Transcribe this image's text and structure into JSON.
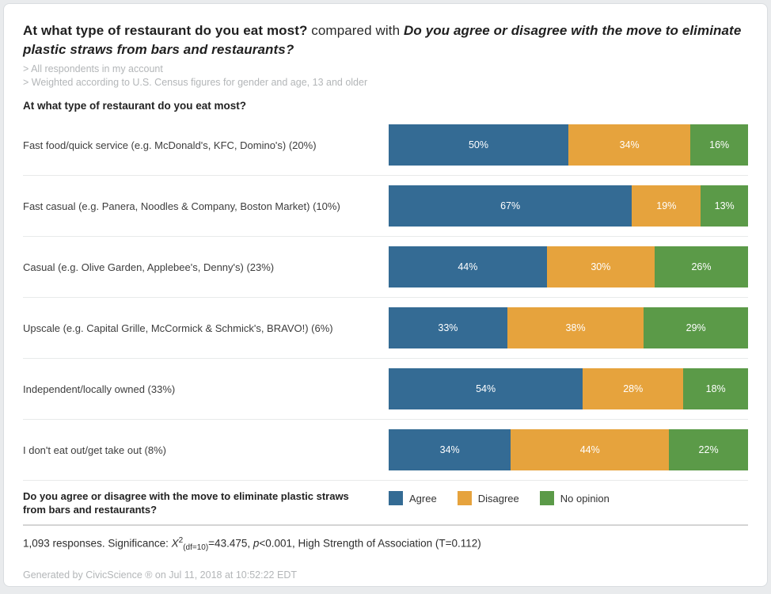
{
  "header": {
    "title_bold": "At what type of restaurant do you eat most?",
    "title_regular": " compared with ",
    "title_italic": "Do you agree or disagree with the move to eliminate plastic straws from bars and restaurants?",
    "filters": [
      "> All respondents in my account",
      "> Weighted according to U.S. Census figures for gender and age, 13 and older"
    ]
  },
  "section_heading": "At what type of restaurant do you eat most?",
  "chart_data": {
    "type": "bar",
    "orientation": "horizontal",
    "stacked": true,
    "unit": "%",
    "value_label_suffix": "%",
    "legend_position": "bottom-right",
    "grid": false,
    "categories": [
      "Fast food/quick service (e.g. McDonald's, KFC, Domino's) (20%)",
      "Fast casual (e.g. Panera, Noodles & Company, Boston Market) (10%)",
      "Casual (e.g. Olive Garden, Applebee's, Denny's) (23%)",
      "Upscale (e.g. Capital Grille, McCormick & Schmick's, BRAVO!) (6%)",
      "Independent/locally owned (33%)",
      "I don't eat out/get take out (8%)"
    ],
    "series": [
      {
        "name": "Agree",
        "color": "#346b94",
        "values": [
          50,
          67,
          44,
          33,
          54,
          34
        ]
      },
      {
        "name": "Disagree",
        "color": "#e6a33d",
        "values": [
          34,
          19,
          30,
          38,
          28,
          44
        ]
      },
      {
        "name": "No opinion",
        "color": "#5b9a48",
        "values": [
          16,
          13,
          26,
          29,
          18,
          22
        ]
      }
    ]
  },
  "legend": {
    "question": "Do you agree or disagree with the move to eliminate plastic straws from bars and restaurants?"
  },
  "significance": {
    "prefix": "1,093 responses. Significance: ",
    "chi": "X",
    "sup": "2",
    "sub": "(df=10)",
    "equals": "=43.475, ",
    "p": "p",
    "tail": "<0.001, High Strength of Association (T=0.112)"
  },
  "footer": "Generated by CivicScience ® on Jul 11, 2018 at 10:52:22 EDT"
}
